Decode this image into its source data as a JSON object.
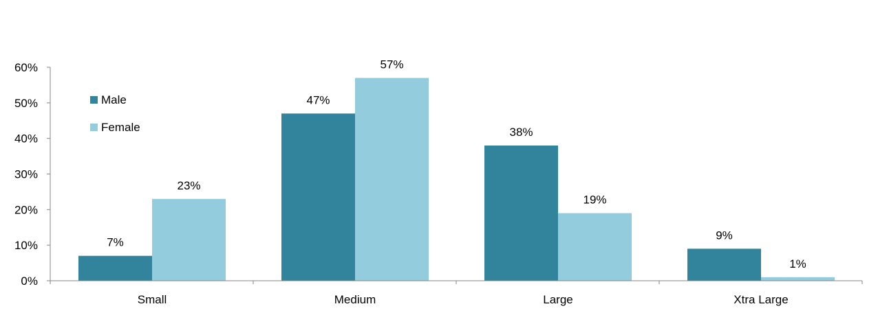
{
  "chart_data": {
    "type": "bar",
    "title": "",
    "xlabel": "",
    "ylabel": "",
    "categories": [
      "Small",
      "Medium",
      "Large",
      "Xtra Large"
    ],
    "series": [
      {
        "name": "Male",
        "values": [
          7,
          47,
          38,
          9
        ],
        "labels": [
          "7%",
          "47%",
          "38%",
          "9%"
        ],
        "color": "#31849b"
      },
      {
        "name": "Female",
        "values": [
          23,
          57,
          19,
          1
        ],
        "labels": [
          "23%",
          "57%",
          "19%",
          "1%"
        ],
        "color": "#93cddd"
      }
    ],
    "ylim": [
      0,
      60
    ],
    "yticks": [
      0,
      10,
      20,
      30,
      40,
      50,
      60
    ],
    "ytick_labels": [
      "0%",
      "10%",
      "20%",
      "30%",
      "40%",
      "50%",
      "60%"
    ],
    "grid": false,
    "legend_position": "top-left",
    "axis_color": "#868686"
  }
}
